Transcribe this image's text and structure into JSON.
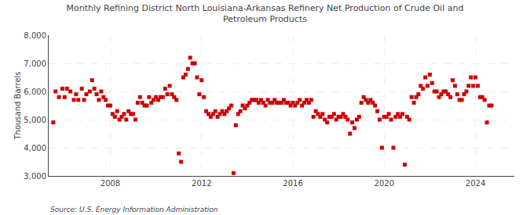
{
  "chart_data": {
    "type": "scatter",
    "title": "Monthly Refining District North Louisiana-Arkansas Refinery Net Production of Crude Oil and\nPetroleum Products",
    "ylabel": "Thousand Barrels",
    "annotations": [
      "Source: U.S. Energy Information Administration"
    ],
    "color": "#cc0000",
    "marker": "square",
    "grid": true,
    "xlim": [
      2005.3,
      2025.7
    ],
    "xticks": [
      2008,
      2012,
      2016,
      2020,
      2024
    ],
    "ylim": [
      3000,
      8000
    ],
    "yticks": [
      {
        "value": 3000,
        "label": "3,000"
      },
      {
        "value": 4000,
        "label": "4,000"
      },
      {
        "value": 5000,
        "label": "5,000"
      },
      {
        "value": 6000,
        "label": "6,000"
      },
      {
        "value": 7000,
        "label": "7,000"
      },
      {
        "value": 8000,
        "label": "8,000"
      }
    ],
    "x": [
      2005.5,
      2005.6,
      2005.75,
      2005.9,
      2006.0,
      2006.1,
      2006.25,
      2006.4,
      2006.5,
      2006.6,
      2006.75,
      2006.85,
      2006.95,
      2007.1,
      2007.2,
      2007.3,
      2007.4,
      2007.5,
      2007.6,
      2007.7,
      2007.8,
      2007.9,
      2008.0,
      2008.1,
      2008.2,
      2008.3,
      2008.4,
      2008.5,
      2008.6,
      2008.7,
      2008.8,
      2008.9,
      2009.0,
      2009.1,
      2009.2,
      2009.3,
      2009.4,
      2009.5,
      2009.6,
      2009.7,
      2009.8,
      2009.9,
      2010.0,
      2010.1,
      2010.2,
      2010.3,
      2010.4,
      2010.5,
      2010.6,
      2010.7,
      2010.8,
      2010.9,
      2011.0,
      2011.1,
      2011.2,
      2011.3,
      2011.4,
      2011.5,
      2011.6,
      2011.7,
      2011.8,
      2011.9,
      2012.0,
      2012.1,
      2012.2,
      2012.3,
      2012.4,
      2012.5,
      2012.6,
      2012.7,
      2012.8,
      2012.9,
      2013.0,
      2013.1,
      2013.2,
      2013.3,
      2013.4,
      2013.5,
      2013.6,
      2013.7,
      2013.8,
      2013.9,
      2014.0,
      2014.1,
      2014.2,
      2014.3,
      2014.4,
      2014.5,
      2014.6,
      2014.7,
      2014.8,
      2014.9,
      2015.0,
      2015.1,
      2015.2,
      2015.3,
      2015.4,
      2015.5,
      2015.6,
      2015.7,
      2015.8,
      2015.9,
      2016.0,
      2016.1,
      2016.2,
      2016.3,
      2016.4,
      2016.5,
      2016.6,
      2016.7,
      2016.8,
      2016.9,
      2017.0,
      2017.1,
      2017.2,
      2017.3,
      2017.4,
      2017.5,
      2017.6,
      2017.7,
      2017.8,
      2017.9,
      2018.0,
      2018.1,
      2018.2,
      2018.3,
      2018.4,
      2018.5,
      2018.6,
      2018.7,
      2018.8,
      2018.9,
      2019.0,
      2019.1,
      2019.2,
      2019.3,
      2019.4,
      2019.5,
      2019.6,
      2019.7,
      2019.8,
      2019.9,
      2020.0,
      2020.1,
      2020.2,
      2020.3,
      2020.4,
      2020.5,
      2020.6,
      2020.7,
      2020.8,
      2020.9,
      2021.0,
      2021.1,
      2021.2,
      2021.3,
      2021.4,
      2021.5,
      2021.6,
      2021.7,
      2021.8,
      2021.9,
      2022.0,
      2022.1,
      2022.2,
      2022.3,
      2022.4,
      2022.5,
      2022.6,
      2022.7,
      2022.8,
      2022.9,
      2023.0,
      2023.1,
      2023.2,
      2023.3,
      2023.4,
      2023.5,
      2023.6,
      2023.7,
      2023.8,
      2023.9,
      2024.0,
      2024.1,
      2024.2,
      2024.3,
      2024.4,
      2024.5,
      2024.6,
      2024.7
    ],
    "values": [
      4900,
      6000,
      5800,
      6100,
      5800,
      6100,
      6000,
      5700,
      5900,
      5700,
      6100,
      5700,
      5900,
      6000,
      6400,
      6100,
      5900,
      5700,
      6000,
      5800,
      5700,
      5500,
      5500,
      5200,
      5100,
      5300,
      5000,
      5100,
      5200,
      5000,
      5300,
      5200,
      5200,
      5000,
      5600,
      5800,
      5600,
      5500,
      5500,
      5800,
      5600,
      5700,
      5800,
      5700,
      5800,
      5800,
      6100,
      5900,
      6200,
      5900,
      5800,
      5700,
      3800,
      3500,
      6500,
      6600,
      6800,
      7200,
      7000,
      7000,
      6500,
      5900,
      6400,
      5800,
      5300,
      5200,
      5100,
      5200,
      5300,
      5100,
      5200,
      5300,
      5200,
      5300,
      5400,
      5500,
      3100,
      4800,
      5200,
      5300,
      5500,
      5400,
      5500,
      5600,
      5700,
      5700,
      5700,
      5600,
      5700,
      5600,
      5500,
      5700,
      5600,
      5600,
      5700,
      5600,
      5600,
      5600,
      5700,
      5600,
      5600,
      5500,
      5600,
      5500,
      5600,
      5700,
      5500,
      5600,
      5700,
      5600,
      5700,
      5100,
      5300,
      5200,
      5100,
      5200,
      5000,
      4900,
      5100,
      5100,
      5200,
      5000,
      5100,
      5100,
      5200,
      5100,
      5000,
      4500,
      4900,
      4700,
      5000,
      5100,
      5600,
      5800,
      5700,
      5600,
      5700,
      5600,
      5500,
      5300,
      5000,
      4000,
      5100,
      5100,
      5200,
      5000,
      4000,
      5100,
      5200,
      5100,
      5200,
      3400,
      5100,
      5000,
      5800,
      5600,
      5800,
      5900,
      6200,
      6100,
      6500,
      6200,
      6600,
      6300,
      6000,
      6000,
      5800,
      5900,
      6000,
      6000,
      5900,
      5800,
      6400,
      6200,
      5900,
      5700,
      5700,
      5900,
      6000,
      6200,
      6500,
      6200,
      6500,
      6200,
      5800,
      5800,
      5700,
      4900,
      5500,
      5500
    ]
  }
}
